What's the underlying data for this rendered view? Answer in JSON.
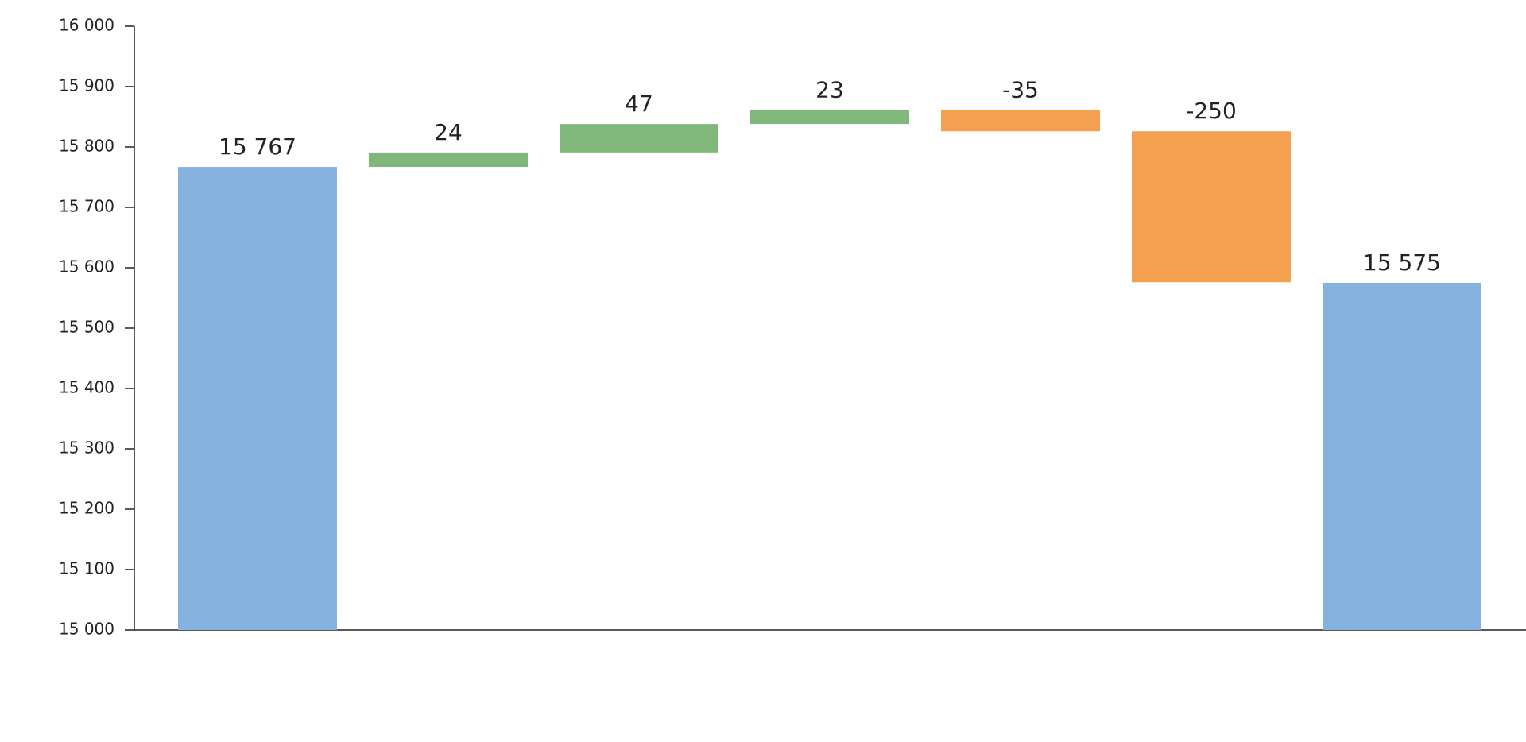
{
  "chart_data": {
    "type": "waterfall",
    "categories": [
      null,
      null,
      null,
      null,
      null,
      null,
      null
    ],
    "values": [
      15767,
      24,
      47,
      23,
      -35,
      -250,
      15575
    ],
    "value_labels": [
      "15 767",
      "24",
      "47",
      "23",
      "-35",
      "-250",
      "15 575"
    ],
    "is_total": [
      true,
      false,
      false,
      false,
      false,
      false,
      true
    ],
    "colors": {
      "total": "#85b2df",
      "increase": "#82b77c",
      "decrease": "#f5a050"
    },
    "ylim": [
      15000,
      16000
    ],
    "yticks": [
      {
        "value": 15000,
        "label": "15 000"
      },
      {
        "value": 15100,
        "label": "15 100"
      },
      {
        "value": 15200,
        "label": "15 200"
      },
      {
        "value": 15300,
        "label": "15 300"
      },
      {
        "value": 15400,
        "label": "15 400"
      },
      {
        "value": 15500,
        "label": "15 500"
      },
      {
        "value": 15600,
        "label": "15 600"
      },
      {
        "value": 15700,
        "label": "15 700"
      },
      {
        "value": 15800,
        "label": "15 800"
      },
      {
        "value": 15900,
        "label": "15 900"
      },
      {
        "value": 16000,
        "label": "16 000"
      }
    ],
    "grid": false
  }
}
